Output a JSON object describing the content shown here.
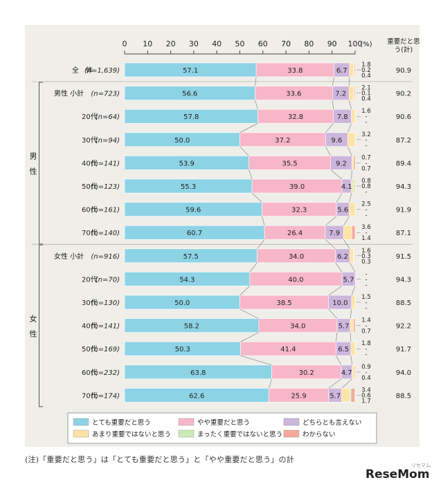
{
  "chart_data": {
    "type": "bar",
    "stacked": true,
    "orientation": "horizontal",
    "unit_label": "(%)",
    "total_header": "重要だと思う(計)",
    "xlim": [
      0,
      100
    ],
    "ticks": [
      0,
      10,
      20,
      30,
      40,
      50,
      60,
      70,
      80,
      90,
      100
    ],
    "group_labels": {
      "male": "男性",
      "female": "女性"
    },
    "series": [
      {
        "name": "とても重要だと思う",
        "color": "#8dd3e6"
      },
      {
        "name": "やや重要だと思う",
        "color": "#f7b7c8"
      },
      {
        "name": "どちらとも言えない",
        "color": "#cdb6dc"
      },
      {
        "name": "あまり重要ではないと思う",
        "color": "#fde3a7"
      },
      {
        "name": "まったく重要ではないと思う",
        "color": "#cce9b8"
      },
      {
        "name": "わからない",
        "color": "#f6a99a"
      }
    ],
    "rows": [
      {
        "label": "全　体",
        "n": "(n=1,639)",
        "values": [
          57.1,
          33.8,
          6.7,
          1.8,
          0.2,
          0.4
        ],
        "small_labels": [
          "1.8",
          "0.2",
          "0.4"
        ],
        "total": "90.9"
      },
      {
        "label": "男性 小計",
        "n": "(n=723)",
        "values": [
          56.6,
          33.6,
          7.2,
          2.1,
          0.1,
          0.4
        ],
        "small_labels": [
          "2.1",
          "0.1",
          "0.4"
        ],
        "total": "90.2"
      },
      {
        "label": "20代",
        "n": "(n=64)",
        "values": [
          57.8,
          32.8,
          7.8,
          1.6,
          0,
          0
        ],
        "small_labels": [
          "1.6",
          "-",
          "-"
        ],
        "total": "90.6"
      },
      {
        "label": "30代",
        "n": "(n=94)",
        "values": [
          50.0,
          37.2,
          9.6,
          3.2,
          0,
          0
        ],
        "small_labels": [
          "3.2",
          "-",
          "-"
        ],
        "total": "87.2"
      },
      {
        "label": "40代",
        "n": "(n=141)",
        "values": [
          53.9,
          35.5,
          9.2,
          0.7,
          0,
          0.7
        ],
        "small_labels": [
          "0.7",
          "-",
          "0.7"
        ],
        "total": "89.4"
      },
      {
        "label": "50代",
        "n": "(n=123)",
        "values": [
          55.3,
          39.0,
          4.1,
          0.8,
          0.8,
          0
        ],
        "small_labels": [
          "0.8",
          "0.8",
          "-"
        ],
        "total": "94.3"
      },
      {
        "label": "60代",
        "n": "(n=161)",
        "values": [
          59.6,
          32.3,
          5.6,
          2.5,
          0,
          0
        ],
        "small_labels": [
          "2.5",
          "-",
          "-"
        ],
        "total": "91.9"
      },
      {
        "label": "70代",
        "n": "(n=140)",
        "values": [
          60.7,
          26.4,
          7.9,
          3.6,
          0,
          1.4
        ],
        "small_labels": [
          "3.6",
          "-",
          "1.4"
        ],
        "total": "87.1"
      },
      {
        "label": "女性 小計",
        "n": "(n=916)",
        "values": [
          57.5,
          34.0,
          6.2,
          1.6,
          0.3,
          0.3
        ],
        "small_labels": [
          "1.6",
          "0.3",
          "0.3"
        ],
        "total": "91.5"
      },
      {
        "label": "20代",
        "n": "(n=70)",
        "values": [
          54.3,
          40.0,
          5.7,
          0,
          0,
          0
        ],
        "small_labels": [
          "-",
          "-",
          "-"
        ],
        "total": "94.3"
      },
      {
        "label": "30代",
        "n": "(n=130)",
        "values": [
          50.0,
          38.5,
          10.0,
          1.5,
          0,
          0
        ],
        "small_labels": [
          "1.5",
          "-",
          "-"
        ],
        "total": "88.5"
      },
      {
        "label": "40代",
        "n": "(n=141)",
        "values": [
          58.2,
          34.0,
          5.7,
          1.4,
          0,
          0.7
        ],
        "small_labels": [
          "1.4",
          "-",
          "0.7"
        ],
        "total": "92.2"
      },
      {
        "label": "50代",
        "n": "(n=169)",
        "values": [
          50.3,
          41.4,
          6.5,
          1.8,
          0,
          0
        ],
        "small_labels": [
          "1.8",
          "-",
          "-"
        ],
        "total": "91.7"
      },
      {
        "label": "60代",
        "n": "(n=232)",
        "values": [
          63.8,
          30.2,
          4.7,
          0.9,
          0,
          0.4
        ],
        "small_labels": [
          "0.9",
          "-",
          "0.4"
        ],
        "total": "94.0"
      },
      {
        "label": "70代",
        "n": "(n=174)",
        "values": [
          62.6,
          25.9,
          5.7,
          3.4,
          0.6,
          1.7
        ],
        "small_labels": [
          "3.4",
          "0.6",
          "1.7"
        ],
        "total": "88.5"
      }
    ]
  },
  "note": "(注)「重要だと思う」は「とても重要だと思う」と「やや重要だと思う」の計",
  "brand": "ReseMom",
  "brand_sub": "リセマム"
}
